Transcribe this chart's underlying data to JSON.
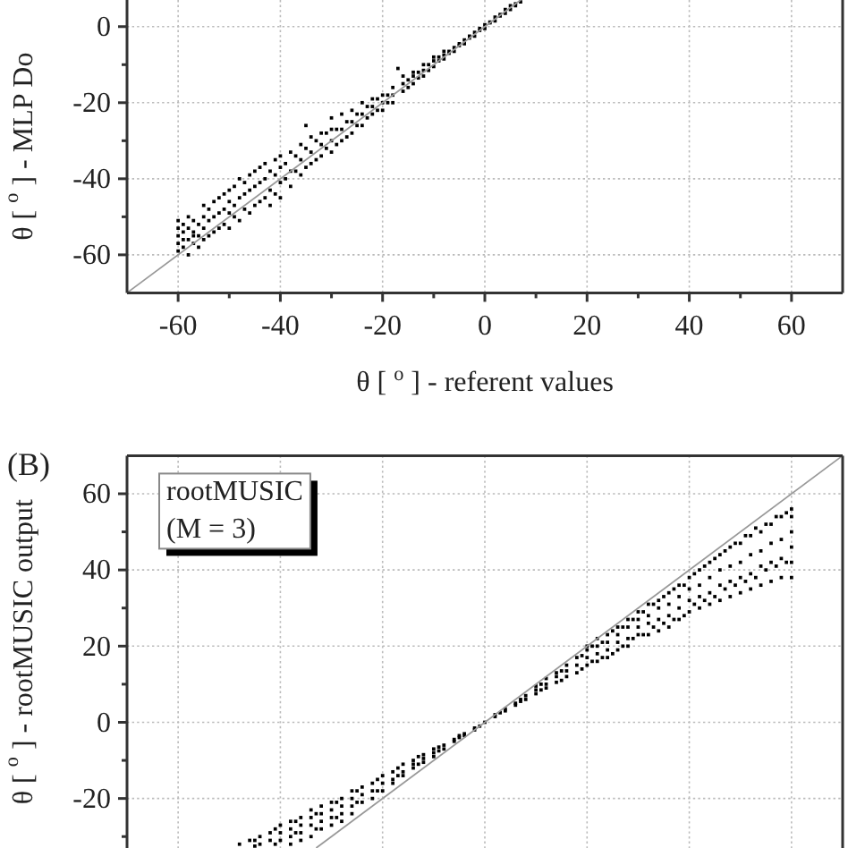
{
  "chart_data": [
    {
      "type": "scatter",
      "xlabel": "θ [ $^{o}$ ] - referent values",
      "ylabel": "θ [ $^{o}$ ] - MLP Do",
      "xlim": [
        -70,
        70
      ],
      "ylim": [
        -70,
        7
      ],
      "xticks": [
        -60,
        {
          "value": -50,
          "label": null
        },
        -40,
        {
          "value": -30,
          "label": null
        },
        -20,
        {
          "value": -10,
          "label": null
        },
        0,
        {
          "value": 10,
          "label": null
        },
        20,
        {
          "value": 30,
          "label": null
        },
        40,
        {
          "value": 50,
          "label": null
        },
        60
      ],
      "yticks": [
        -60,
        {
          "value": -50,
          "label": null
        },
        -40,
        {
          "value": -30,
          "label": null
        },
        -20,
        {
          "value": -10,
          "label": null
        },
        0
      ],
      "grid": true,
      "series": [
        {
          "color": "#000000",
          "marker": "square",
          "x": [
            -60,
            -60,
            -60,
            -60,
            -60,
            -59,
            -59,
            -59,
            -59,
            -58,
            -58,
            -58,
            -58,
            -57,
            -57,
            -57,
            -57,
            -56,
            -56,
            -56,
            -55,
            -55,
            -55,
            -55,
            -54,
            -54,
            -54,
            -53,
            -53,
            -53,
            -52,
            -52,
            -52,
            -51,
            -51,
            -51,
            -50,
            -50,
            -50,
            -50,
            -49,
            -49,
            -49,
            -48,
            -48,
            -48,
            -47,
            -47,
            -47,
            -46,
            -46,
            -46,
            -45,
            -45,
            -45,
            -44,
            -44,
            -44,
            -43,
            -43,
            -43,
            -42,
            -42,
            -42,
            -41,
            -41,
            -41,
            -40,
            -40,
            -40,
            -40,
            -38,
            -38,
            -38,
            -36,
            -36,
            -36,
            -35,
            -34,
            -34,
            -34,
            -32,
            -32,
            -32,
            -30,
            -30,
            -30,
            -30,
            -28,
            -28,
            -28,
            -26,
            -26,
            -26,
            -24,
            -24,
            -24,
            -22,
            -22,
            -22,
            -20,
            -20,
            -20,
            -18,
            -18,
            -18,
            -17,
            -16,
            -16,
            -16,
            -14,
            -14,
            -14,
            -12,
            -12,
            -12,
            -10,
            -10,
            -10,
            -8,
            -8,
            -8,
            -6,
            -6,
            -4,
            -4,
            -2,
            -2,
            0,
            0,
            2,
            2,
            4,
            4,
            5,
            5,
            6,
            6,
            7,
            -39,
            -39,
            -37,
            -37,
            -35,
            -35,
            -33,
            -33,
            -31,
            -31,
            -29,
            -29,
            -27,
            -27,
            -25,
            -25,
            -23,
            -23,
            -21,
            -21,
            -19,
            -19,
            -15,
            -15,
            -13,
            -13,
            -11,
            -11,
            -9,
            -9,
            -7,
            -7,
            -5,
            -5,
            -3,
            -3,
            -1,
            -1,
            1,
            1,
            3,
            3
          ],
          "values": [
            -59,
            -57,
            -55,
            -53,
            -51,
            -58,
            -56,
            -54,
            -52,
            -60,
            -56,
            -53,
            -50,
            -57,
            -55,
            -54,
            -51,
            -58,
            -55,
            -52,
            -56,
            -53,
            -50,
            -47,
            -55,
            -51,
            -48,
            -54,
            -50,
            -46,
            -53,
            -49,
            -45,
            -52,
            -48,
            -44,
            -53,
            -49,
            -46,
            -43,
            -50,
            -47,
            -42,
            -51,
            -45,
            -40,
            -48,
            -44,
            -41,
            -49,
            -43,
            -39,
            -47,
            -42,
            -38,
            -46,
            -41,
            -37,
            -45,
            -40,
            -36,
            -47,
            -43,
            -38,
            -44,
            -39,
            -35,
            -45,
            -41,
            -37,
            -34,
            -42,
            -38,
            -33,
            -39,
            -35,
            -31,
            -26,
            -36,
            -33,
            -29,
            -34,
            -31,
            -28,
            -33,
            -30,
            -27,
            -24,
            -30,
            -27,
            -23,
            -28,
            -25,
            -22,
            -26,
            -23,
            -20,
            -23,
            -21,
            -19,
            -22,
            -20,
            -18,
            -20,
            -18,
            -16,
            -11,
            -17,
            -15,
            -13,
            -15,
            -13,
            -12,
            -13,
            -11.5,
            -10,
            -10.5,
            -9,
            -8,
            -8.5,
            -7.5,
            -6.5,
            -6.5,
            -5.5,
            -4.5,
            -3.5,
            -2.5,
            -1.5,
            -0.5,
            0.5,
            1.5,
            2.5,
            3.5,
            4.5,
            4.5,
            5.5,
            5.5,
            6,
            6.5,
            -40,
            -36,
            -38,
            -34,
            -37,
            -32,
            -35,
            -30,
            -32,
            -28,
            -31,
            -27,
            -29,
            -25,
            -26,
            -23,
            -24,
            -21,
            -22,
            -19,
            -20,
            -18,
            -16,
            -14,
            -13.5,
            -12,
            -11.5,
            -10,
            -9,
            -8,
            -7,
            -6.5,
            -5,
            -4.5,
            -3,
            -2.5,
            -1,
            -0.5,
            1,
            1.2,
            2.8,
            3.2
          ]
        },
        {
          "type": "line",
          "color": "#999999",
          "x": [
            -70,
            7
          ],
          "values": [
            -70,
            7
          ]
        }
      ]
    },
    {
      "type": "scatter",
      "title": "(B)",
      "ylabel": "θ [ $^{o}$ ] - rootMUSIC output",
      "xlim": [
        -70,
        70
      ],
      "ylim": [
        -33,
        70
      ],
      "tick_labels": "y",
      "xticks": [
        -60,
        -40,
        -20,
        0,
        20,
        40,
        60
      ],
      "yticks": [
        {
          "value": -30,
          "label": null
        },
        -20,
        {
          "value": -10,
          "label": null
        },
        0,
        {
          "value": 10,
          "label": null
        },
        20,
        {
          "value": 30,
          "label": null
        },
        40,
        {
          "value": 50,
          "label": null
        },
        60
      ],
      "grid": true,
      "annotations": [
        "rootMUSIC",
        "(M = 3)"
      ],
      "series": [
        {
          "color": "#000000",
          "marker": "square",
          "x": [
            -48,
            -46,
            -44,
            -44,
            -42,
            -42,
            -40,
            -40,
            -40,
            -38,
            -38,
            -38,
            -38,
            -36,
            -36,
            -36,
            -36,
            -34,
            -34,
            -34,
            -34,
            -32,
            -32,
            -32,
            -32,
            -30,
            -30,
            -30,
            -30,
            -28,
            -28,
            -28,
            -28,
            -26,
            -26,
            -26,
            -26,
            -24,
            -24,
            -24,
            -22,
            -22,
            -22,
            -20,
            -20,
            -20,
            -18,
            -18,
            -18,
            -16,
            -16,
            -16,
            -14,
            -14,
            -14,
            -12,
            -12,
            -12,
            -10,
            -10,
            -10,
            -8,
            -8,
            -6,
            -6,
            -4,
            -4,
            -2,
            -2,
            0,
            2,
            2,
            4,
            4,
            6,
            6,
            8,
            8,
            10,
            10,
            10,
            12,
            12,
            12,
            14,
            14,
            14,
            16,
            16,
            16,
            18,
            18,
            18,
            20,
            20,
            20,
            20,
            22,
            22,
            22,
            22,
            24,
            24,
            24,
            24,
            26,
            26,
            26,
            26,
            28,
            28,
            28,
            28,
            30,
            30,
            30,
            30,
            32,
            32,
            32,
            32,
            34,
            34,
            34,
            34,
            36,
            36,
            36,
            36,
            38,
            38,
            38,
            38,
            40,
            40,
            40,
            40,
            42,
            42,
            42,
            42,
            44,
            44,
            44,
            44,
            46,
            46,
            46,
            46,
            48,
            48,
            48,
            48,
            50,
            50,
            50,
            50,
            52,
            52,
            52,
            52,
            54,
            54,
            54,
            54,
            56,
            56,
            56,
            56,
            58,
            58,
            58,
            58,
            60,
            60,
            60,
            60,
            60,
            60,
            -45,
            -45,
            -41,
            -41,
            -37,
            -37,
            -33,
            -33,
            -29,
            -29,
            -25,
            -25,
            -21,
            -21,
            -17,
            -17,
            -13,
            -13,
            -9,
            -9,
            -5,
            -5,
            -1,
            3,
            7,
            7,
            11,
            11,
            15,
            15,
            19,
            19,
            21,
            21,
            23,
            23,
            25,
            25,
            27,
            27,
            29,
            29,
            31,
            31,
            33,
            33,
            35,
            35,
            37,
            37,
            39,
            39,
            41,
            41,
            43,
            43,
            45,
            45,
            47,
            47,
            49,
            49,
            51,
            51,
            53,
            53,
            55,
            55,
            57,
            57,
            59,
            59
          ],
          "values": [
            -32,
            -31,
            -30,
            -32,
            -29,
            -31,
            -27,
            -29,
            -31,
            -26,
            -28,
            -30,
            -32,
            -25,
            -27,
            -29,
            -31,
            -23,
            -25,
            -27,
            -30,
            -22,
            -24,
            -26,
            -28,
            -21,
            -23,
            -25,
            -27,
            -20,
            -22,
            -24,
            -26,
            -18,
            -20,
            -22,
            -24,
            -17,
            -19,
            -21,
            -16,
            -18,
            -20,
            -14,
            -16,
            -18,
            -13,
            -15,
            -16,
            -11,
            -13,
            -14,
            -10,
            -11,
            -12,
            -8.5,
            -9.5,
            -10.5,
            -7,
            -8,
            -9,
            -6,
            -7,
            -4.5,
            -5,
            -3,
            -3.5,
            -1.5,
            -2,
            0,
            1.5,
            2,
            3,
            3.5,
            4.5,
            5,
            6,
            7,
            7.5,
            8.5,
            9.5,
            9,
            10,
            11.5,
            10.5,
            12,
            13,
            12,
            13.5,
            15,
            13,
            15,
            17,
            15,
            17,
            19,
            20,
            16,
            18,
            20,
            22,
            17,
            19,
            21,
            23,
            19,
            21,
            23,
            25,
            20,
            22,
            25,
            27,
            23,
            25,
            27,
            29,
            23,
            26,
            28,
            31,
            24,
            27,
            30,
            32,
            25,
            28,
            31,
            34,
            27,
            30,
            33,
            36,
            29,
            32,
            35,
            38,
            30,
            33,
            36,
            40,
            31,
            34,
            38,
            42,
            32,
            36,
            40,
            44,
            33,
            37,
            41,
            46,
            34,
            38,
            42,
            47,
            35,
            39,
            44,
            49,
            36,
            41,
            45,
            50,
            37,
            42,
            47,
            52,
            38,
            43,
            48,
            54,
            38,
            42,
            46,
            50,
            54,
            56,
            -31,
            -32.5,
            -28,
            -32,
            -26,
            -29,
            -24,
            -28,
            -21,
            -25,
            -18,
            -21,
            -15,
            -18,
            -12,
            -14,
            -9,
            -11,
            -6.5,
            -7.5,
            -3.5,
            -4,
            -1,
            2.5,
            5.5,
            6,
            8.5,
            10,
            11,
            13.5,
            14,
            17.5,
            16,
            20,
            17,
            21,
            18,
            24,
            20,
            25,
            22,
            27,
            23,
            29,
            25,
            31,
            26,
            33,
            27,
            35,
            28,
            36,
            31,
            39,
            32,
            41,
            33,
            43,
            35,
            45,
            36,
            47,
            37,
            49,
            38,
            51,
            40,
            52,
            41,
            54,
            42,
            55
          ]
        },
        {
          "type": "line",
          "color": "#999999",
          "x": [
            -33,
            70
          ],
          "values": [
            -33,
            70
          ]
        }
      ]
    }
  ]
}
